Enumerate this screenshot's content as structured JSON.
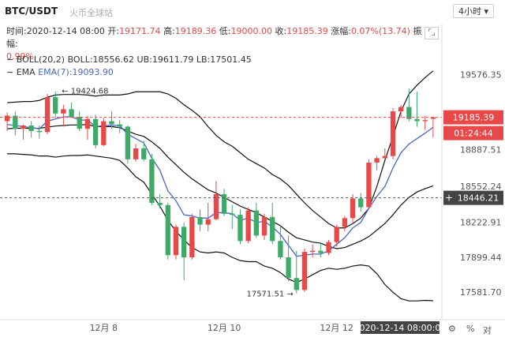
{
  "header": {
    "symbol": "BTC/USDT",
    "exchange": "火币全球站",
    "interval": "4小时"
  },
  "ohlc": {
    "time_label": "时间:",
    "time_value": "2020-12-14 08:00",
    "open_label": "开:",
    "open_value": "19171.74",
    "high_label": "高:",
    "high_value": "19189.36",
    "low_label": "低:",
    "low_value": "19000.00",
    "close_label": "收:",
    "close_value": "19185.39",
    "change_label": "涨幅:",
    "change_value": "0.07%(13.74)",
    "amplitude_label": "振幅:",
    "amplitude_value": "0.99%"
  },
  "indicators": {
    "boll_label": "BOLL(20,2)",
    "boll_value": "BOLL:18556.62",
    "ub_value": "UB:19611.79",
    "lb_value": "LB:17501.45",
    "ema_label": "EMA",
    "ema_value": "EMA(7):19093.90"
  },
  "icons": {
    "expand": "expand-icon",
    "settings": "gear-icon",
    "percent": "%",
    "log": "对"
  },
  "chart_data": {
    "type": "candlestick",
    "y_ticks": [
      "19576.35",
      "18887.51",
      "18552.24",
      "18222.91",
      "17899.44",
      "17581.70"
    ],
    "x_ticks": [
      "12月 8",
      "12月 10",
      "12月 12"
    ],
    "last_price": "19185.39",
    "countdown": "01:24:44",
    "crosshair_price": "18446.21",
    "crosshair_time": "2020-12-14 08:00:00",
    "annotations": {
      "high_marker": "19424.68",
      "low_marker": "17571.51"
    },
    "ylim": [
      17400,
      19900
    ],
    "colors": {
      "up": "#e84848",
      "down": "#3daa67",
      "ema": "#4a66c6",
      "boll": "#111111"
    },
    "candles": [
      {
        "o": 19150,
        "h": 19230,
        "l": 19060,
        "c": 19200
      },
      {
        "o": 19200,
        "h": 19240,
        "l": 19020,
        "c": 19080
      },
      {
        "o": 19080,
        "h": 19120,
        "l": 18980,
        "c": 19110
      },
      {
        "o": 19110,
        "h": 19150,
        "l": 19000,
        "c": 19060
      },
      {
        "o": 19060,
        "h": 19110,
        "l": 18990,
        "c": 19050
      },
      {
        "o": 19050,
        "h": 19400,
        "l": 19030,
        "c": 19370
      },
      {
        "o": 19370,
        "h": 19424.68,
        "l": 19180,
        "c": 19220
      },
      {
        "o": 19220,
        "h": 19300,
        "l": 19100,
        "c": 19260
      },
      {
        "o": 19260,
        "h": 19320,
        "l": 19180,
        "c": 19190
      },
      {
        "o": 19190,
        "h": 19240,
        "l": 19060,
        "c": 19080
      },
      {
        "o": 19080,
        "h": 19200,
        "l": 18980,
        "c": 19170
      },
      {
        "o": 19170,
        "h": 19210,
        "l": 18900,
        "c": 18930
      },
      {
        "o": 18930,
        "h": 19180,
        "l": 18920,
        "c": 19150
      },
      {
        "o": 19150,
        "h": 19240,
        "l": 19080,
        "c": 19120
      },
      {
        "o": 19120,
        "h": 19160,
        "l": 19040,
        "c": 19100
      },
      {
        "o": 19100,
        "h": 19110,
        "l": 18760,
        "c": 18800
      },
      {
        "o": 18800,
        "h": 18940,
        "l": 18780,
        "c": 18900
      },
      {
        "o": 18900,
        "h": 18970,
        "l": 18780,
        "c": 18800
      },
      {
        "o": 18800,
        "h": 18850,
        "l": 18380,
        "c": 18400
      },
      {
        "o": 18400,
        "h": 18480,
        "l": 18350,
        "c": 18380
      },
      {
        "o": 18380,
        "h": 18400,
        "l": 17880,
        "c": 17920
      },
      {
        "o": 17920,
        "h": 18200,
        "l": 17880,
        "c": 18180
      },
      {
        "o": 18180,
        "h": 18220,
        "l": 17690,
        "c": 17900
      },
      {
        "o": 17900,
        "h": 18300,
        "l": 17880,
        "c": 18270
      },
      {
        "o": 18270,
        "h": 18340,
        "l": 18140,
        "c": 18200
      },
      {
        "o": 18200,
        "h": 18400,
        "l": 18140,
        "c": 18250
      },
      {
        "o": 18250,
        "h": 18600,
        "l": 18240,
        "c": 18480
      },
      {
        "o": 18480,
        "h": 18530,
        "l": 18280,
        "c": 18300
      },
      {
        "o": 18300,
        "h": 18380,
        "l": 18160,
        "c": 18290
      },
      {
        "o": 18290,
        "h": 18340,
        "l": 18020,
        "c": 18050
      },
      {
        "o": 18050,
        "h": 18360,
        "l": 18030,
        "c": 18330
      },
      {
        "o": 18330,
        "h": 18400,
        "l": 18080,
        "c": 18100
      },
      {
        "o": 18100,
        "h": 18300,
        "l": 18060,
        "c": 18270
      },
      {
        "o": 18270,
        "h": 18400,
        "l": 18020,
        "c": 18050
      },
      {
        "o": 18050,
        "h": 18200,
        "l": 17880,
        "c": 17900
      },
      {
        "o": 17900,
        "h": 18100,
        "l": 17680,
        "c": 17710
      },
      {
        "o": 17710,
        "h": 17960,
        "l": 17571.51,
        "c": 17600
      },
      {
        "o": 17600,
        "h": 17980,
        "l": 17580,
        "c": 17950
      },
      {
        "o": 17950,
        "h": 18020,
        "l": 17900,
        "c": 17960
      },
      {
        "o": 17960,
        "h": 18040,
        "l": 17900,
        "c": 17940
      },
      {
        "o": 17940,
        "h": 18060,
        "l": 17920,
        "c": 18040
      },
      {
        "o": 18040,
        "h": 18200,
        "l": 18000,
        "c": 18180
      },
      {
        "o": 18180,
        "h": 18280,
        "l": 18140,
        "c": 18260
      },
      {
        "o": 18260,
        "h": 18480,
        "l": 18220,
        "c": 18440
      },
      {
        "o": 18440,
        "h": 18490,
        "l": 18320,
        "c": 18360
      },
      {
        "o": 18360,
        "h": 18800,
        "l": 18340,
        "c": 18770
      },
      {
        "o": 18770,
        "h": 18830,
        "l": 18700,
        "c": 18810
      },
      {
        "o": 18810,
        "h": 18900,
        "l": 18800,
        "c": 18830
      },
      {
        "o": 18830,
        "h": 19270,
        "l": 18800,
        "c": 19240
      },
      {
        "o": 19240,
        "h": 19300,
        "l": 19180,
        "c": 19280
      },
      {
        "o": 19280,
        "h": 19450,
        "l": 19150,
        "c": 19170
      },
      {
        "o": 19170,
        "h": 19420,
        "l": 19100,
        "c": 19150
      },
      {
        "o": 19150,
        "h": 19200,
        "l": 19070,
        "c": 19160
      },
      {
        "o": 19171.74,
        "h": 19189.36,
        "l": 19000,
        "c": 19185.39
      }
    ],
    "ema7": [
      19120,
      19110,
      19100,
      19090,
      19080,
      19150,
      19170,
      19190,
      19190,
      19160,
      19160,
      19100,
      19110,
      19110,
      19110,
      19030,
      18990,
      18950,
      18810,
      18700,
      18510,
      18420,
      18290,
      18280,
      18260,
      18260,
      18310,
      18310,
      18300,
      18240,
      18260,
      18220,
      18230,
      18180,
      18110,
      18010,
      17910,
      17920,
      17930,
      17930,
      17960,
      18020,
      18080,
      18170,
      18220,
      18350,
      18460,
      18550,
      18720,
      18860,
      18940,
      18990,
      19040,
      19093.9
    ],
    "boll_mid": [
      19080,
      19085,
      19085,
      19085,
      19085,
      19095,
      19105,
      19110,
      19115,
      19115,
      19120,
      19100,
      19100,
      19100,
      19090,
      19060,
      19030,
      19010,
      18960,
      18900,
      18820,
      18750,
      18680,
      18620,
      18570,
      18520,
      18490,
      18450,
      18410,
      18370,
      18340,
      18310,
      18270,
      18230,
      18190,
      18130,
      18080,
      18060,
      18040,
      18030,
      18000,
      17980,
      17990,
      18020,
      18050,
      18090,
      18150,
      18210,
      18290,
      18380,
      18450,
      18500,
      18530,
      18556.62
    ],
    "boll_ub": [
      19320,
      19325,
      19330,
      19330,
      19340,
      19370,
      19390,
      19395,
      19395,
      19395,
      19390,
      19380,
      19390,
      19390,
      19390,
      19400,
      19420,
      19420,
      19420,
      19420,
      19400,
      19360,
      19300,
      19250,
      19190,
      19100,
      19020,
      18960,
      18920,
      18860,
      18800,
      18760,
      18720,
      18660,
      18620,
      18560,
      18480,
      18400,
      18330,
      18270,
      18210,
      18170,
      18170,
      18210,
      18260,
      18350,
      18550,
      18790,
      19010,
      19240,
      19400,
      19480,
      19550,
      19611.79
    ],
    "boll_lb": [
      18850,
      18850,
      18845,
      18840,
      18830,
      18830,
      18820,
      18830,
      18835,
      18835,
      18840,
      18830,
      18820,
      18810,
      18790,
      18720,
      18640,
      18590,
      18480,
      18370,
      18240,
      18140,
      18060,
      17990,
      17950,
      17940,
      17950,
      17940,
      17900,
      17870,
      17860,
      17860,
      17820,
      17800,
      17760,
      17700,
      17670,
      17700,
      17740,
      17780,
      17800,
      17790,
      17800,
      17820,
      17830,
      17820,
      17750,
      17650,
      17580,
      17520,
      17500,
      17500,
      17505,
      17501.45
    ]
  }
}
